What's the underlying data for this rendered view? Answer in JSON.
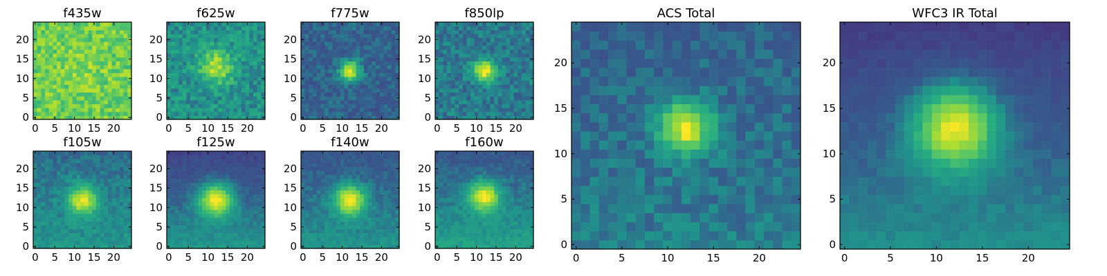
{
  "figure": {
    "colormap": "viridis",
    "colors": {
      "low": "#440154",
      "mid": "#21918c",
      "high": "#fde725",
      "frame": "#000000",
      "background": "#ffffff"
    }
  },
  "chart_data": [
    {
      "type": "heatmap",
      "title": "f435w",
      "grid_size": 25,
      "xlim": [
        0,
        24
      ],
      "ylim": [
        0,
        24
      ],
      "x_ticks": [
        0,
        5,
        10,
        15,
        20
      ],
      "y_ticks": [
        0,
        5,
        10,
        15,
        20
      ],
      "peak": [
        12,
        12
      ],
      "amplitude": 0.05,
      "sigma": 4.0,
      "base": 0.78,
      "noise": 0.24,
      "noise_floor": 0.0,
      "gradient": 0.0
    },
    {
      "type": "heatmap",
      "title": "f625w",
      "grid_size": 25,
      "xlim": [
        0,
        24
      ],
      "ylim": [
        0,
        24
      ],
      "x_ticks": [
        0,
        5,
        10,
        15,
        20
      ],
      "y_ticks": [
        0,
        5,
        10,
        15,
        20
      ],
      "peak": [
        12,
        13
      ],
      "amplitude": 0.38,
      "sigma": 3.0,
      "base": 0.52,
      "noise": 0.22,
      "noise_floor": 0.0,
      "gradient": 0.0
    },
    {
      "type": "heatmap",
      "title": "f775w",
      "grid_size": 25,
      "xlim": [
        0,
        24
      ],
      "ylim": [
        0,
        24
      ],
      "x_ticks": [
        0,
        5,
        10,
        15,
        20
      ],
      "y_ticks": [
        0,
        5,
        10,
        15,
        20
      ],
      "peak": [
        12,
        12
      ],
      "amplitude": 0.58,
      "sigma": 1.8,
      "base": 0.38,
      "noise": 0.16,
      "noise_floor": 0.0,
      "gradient": 0.0
    },
    {
      "type": "heatmap",
      "title": "f850lp",
      "grid_size": 25,
      "xlim": [
        0,
        24
      ],
      "ylim": [
        0,
        24
      ],
      "x_ticks": [
        0,
        5,
        10,
        15,
        20
      ],
      "y_ticks": [
        0,
        5,
        10,
        15,
        20
      ],
      "peak": [
        12,
        12
      ],
      "amplitude": 0.52,
      "sigma": 2.0,
      "base": 0.45,
      "noise": 0.18,
      "noise_floor": 0.0,
      "gradient": 0.0
    },
    {
      "type": "heatmap",
      "title": "f105w",
      "grid_size": 25,
      "xlim": [
        0,
        24
      ],
      "ylim": [
        0,
        24
      ],
      "x_ticks": [
        0,
        5,
        10,
        15,
        20
      ],
      "y_ticks": [
        0,
        5,
        10,
        15,
        20
      ],
      "peak": [
        12,
        12
      ],
      "amplitude": 0.5,
      "sigma": 2.6,
      "base": 0.45,
      "noise": 0.12,
      "noise_floor": 0.0,
      "gradient": 0.08
    },
    {
      "type": "heatmap",
      "title": "f125w",
      "grid_size": 25,
      "xlim": [
        0,
        24
      ],
      "ylim": [
        0,
        24
      ],
      "x_ticks": [
        0,
        5,
        10,
        15,
        20
      ],
      "y_ticks": [
        0,
        5,
        10,
        15,
        20
      ],
      "peak": [
        12,
        12
      ],
      "amplitude": 0.6,
      "sigma": 3.0,
      "base": 0.35,
      "noise": 0.08,
      "noise_floor": 0.0,
      "gradient": 0.18
    },
    {
      "type": "heatmap",
      "title": "f140w",
      "grid_size": 25,
      "xlim": [
        0,
        24
      ],
      "ylim": [
        0,
        24
      ],
      "x_ticks": [
        0,
        5,
        10,
        15,
        20
      ],
      "y_ticks": [
        0,
        5,
        10,
        15,
        20
      ],
      "peak": [
        12,
        12
      ],
      "amplitude": 0.55,
      "sigma": 2.8,
      "base": 0.4,
      "noise": 0.1,
      "noise_floor": 0.0,
      "gradient": 0.12
    },
    {
      "type": "heatmap",
      "title": "f160w",
      "grid_size": 25,
      "xlim": [
        0,
        24
      ],
      "ylim": [
        0,
        24
      ],
      "x_ticks": [
        0,
        5,
        10,
        15,
        20
      ],
      "y_ticks": [
        0,
        5,
        10,
        15,
        20
      ],
      "peak": [
        12,
        13
      ],
      "amplitude": 0.55,
      "sigma": 2.7,
      "base": 0.42,
      "noise": 0.1,
      "noise_floor": 0.0,
      "gradient": 0.15
    },
    {
      "type": "heatmap",
      "title": "ACS Total",
      "grid_size": 25,
      "xlim": [
        0,
        24
      ],
      "ylim": [
        0,
        24
      ],
      "x_ticks": [
        0,
        5,
        10,
        15,
        20
      ],
      "y_ticks": [
        0,
        5,
        10,
        15,
        20
      ],
      "peak": [
        12,
        13
      ],
      "amplitude": 0.58,
      "sigma": 2.0,
      "base": 0.4,
      "noise": 0.14,
      "noise_floor": 0.0,
      "gradient": 0.06
    },
    {
      "type": "heatmap",
      "title": "WFC3 IR Total",
      "grid_size": 25,
      "xlim": [
        0,
        24
      ],
      "ylim": [
        0,
        24
      ],
      "x_ticks": [
        0,
        5,
        10,
        15,
        20
      ],
      "y_ticks": [
        0,
        5,
        10,
        15,
        20
      ],
      "peak": [
        12,
        13
      ],
      "amplitude": 0.62,
      "sigma": 3.2,
      "base": 0.32,
      "noise": 0.06,
      "noise_floor": 0.0,
      "gradient": 0.18
    }
  ]
}
